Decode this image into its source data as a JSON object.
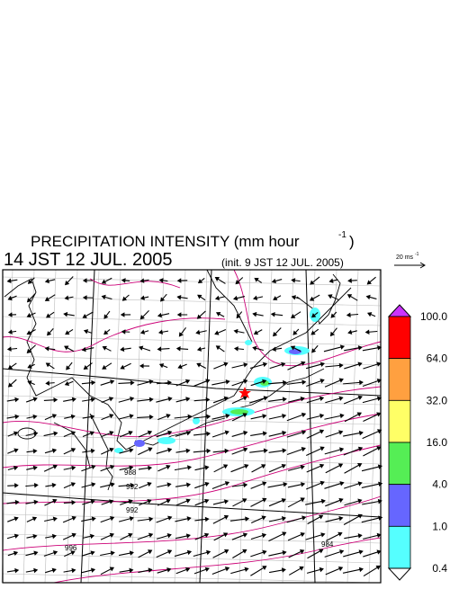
{
  "header": {
    "title": "PRECIPITATION INTENSITY (mm hour",
    "title_exponent": "-1",
    "title_close": ")",
    "valid_time": "14 JST 12 JUL. 2005",
    "init_time": "(init. 9 JST 12 JUL. 2005)"
  },
  "scale_arrow": {
    "label": "20 ms",
    "exponent": "-1"
  },
  "colorbar": {
    "levels": [
      "100.0",
      "64.0",
      "32.0",
      "16.0",
      "4.0",
      "1.0",
      "0.4"
    ],
    "colors": [
      "#ff0000",
      "#ffa040",
      "#ffff66",
      "#55ee55",
      "#6666ff",
      "#55ffff"
    ],
    "over_color": "#cc33ff",
    "under_color": "#ffffff"
  },
  "isobar_labels": [
    "988",
    "992",
    "992",
    "996",
    "984"
  ]
}
